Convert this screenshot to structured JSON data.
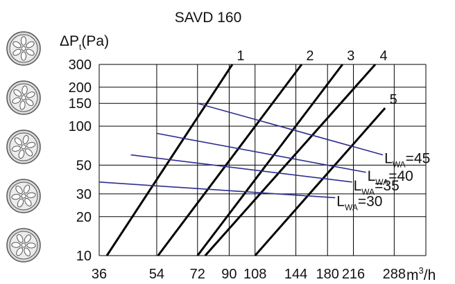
{
  "chart_data": {
    "type": "line",
    "title": "SAVD 160",
    "ylabel": {
      "main": "ΔP",
      "sub": "t",
      "unit": "(Pa)"
    },
    "xlabel": {
      "main": "m",
      "sup": "3",
      "rest": "/h"
    },
    "x_scale": "log",
    "y_scale": "log",
    "xlim": [
      36,
      360
    ],
    "ylim": [
      10,
      300
    ],
    "x_ticks": [
      36,
      54,
      72,
      90,
      108,
      144,
      180,
      216,
      288
    ],
    "y_ticks": [
      10,
      20,
      30,
      50,
      100,
      150,
      200,
      300
    ],
    "grid": true,
    "colors": {
      "curves": "#000000",
      "sound_lines": "#2d2d8f",
      "icon_fill": "#d9d9d9",
      "icon_stroke": "#555555"
    },
    "series": [
      {
        "name": "1",
        "points": [
          [
            38,
            10
          ],
          [
            92,
            300
          ]
        ]
      },
      {
        "name": "2",
        "points": [
          [
            54.5,
            10
          ],
          [
            150,
            300
          ]
        ]
      },
      {
        "name": "3",
        "points": [
          [
            72,
            10
          ],
          [
            200,
            300
          ]
        ]
      },
      {
        "name": "4",
        "points": [
          [
            76,
            10
          ],
          [
            252,
            300
          ]
        ]
      },
      {
        "name": "5",
        "points": [
          [
            108,
            10
          ],
          [
            270,
            138
          ]
        ]
      }
    ],
    "sound_lines": [
      {
        "label": {
          "main": "L",
          "sub": "WA",
          "eq": "=45"
        },
        "points": [
          [
            72,
            150
          ],
          [
            266,
            60
          ]
        ]
      },
      {
        "label": {
          "main": "L",
          "sub": "WA",
          "eq": "=40"
        },
        "points": [
          [
            54,
            88
          ],
          [
            236,
            44
          ]
        ]
      },
      {
        "label": {
          "main": "L",
          "sub": "WA",
          "eq": "=35"
        },
        "points": [
          [
            45,
            60
          ],
          [
            214,
            37
          ]
        ]
      },
      {
        "label": {
          "main": "L",
          "sub": "WA",
          "eq": "=30"
        },
        "points": [
          [
            36,
            37
          ],
          [
            190,
            28
          ]
        ]
      }
    ]
  },
  "icons": [
    "diffuser-setting-icon",
    "diffuser-setting-icon",
    "diffuser-setting-icon",
    "diffuser-setting-icon",
    "diffuser-setting-icon"
  ]
}
